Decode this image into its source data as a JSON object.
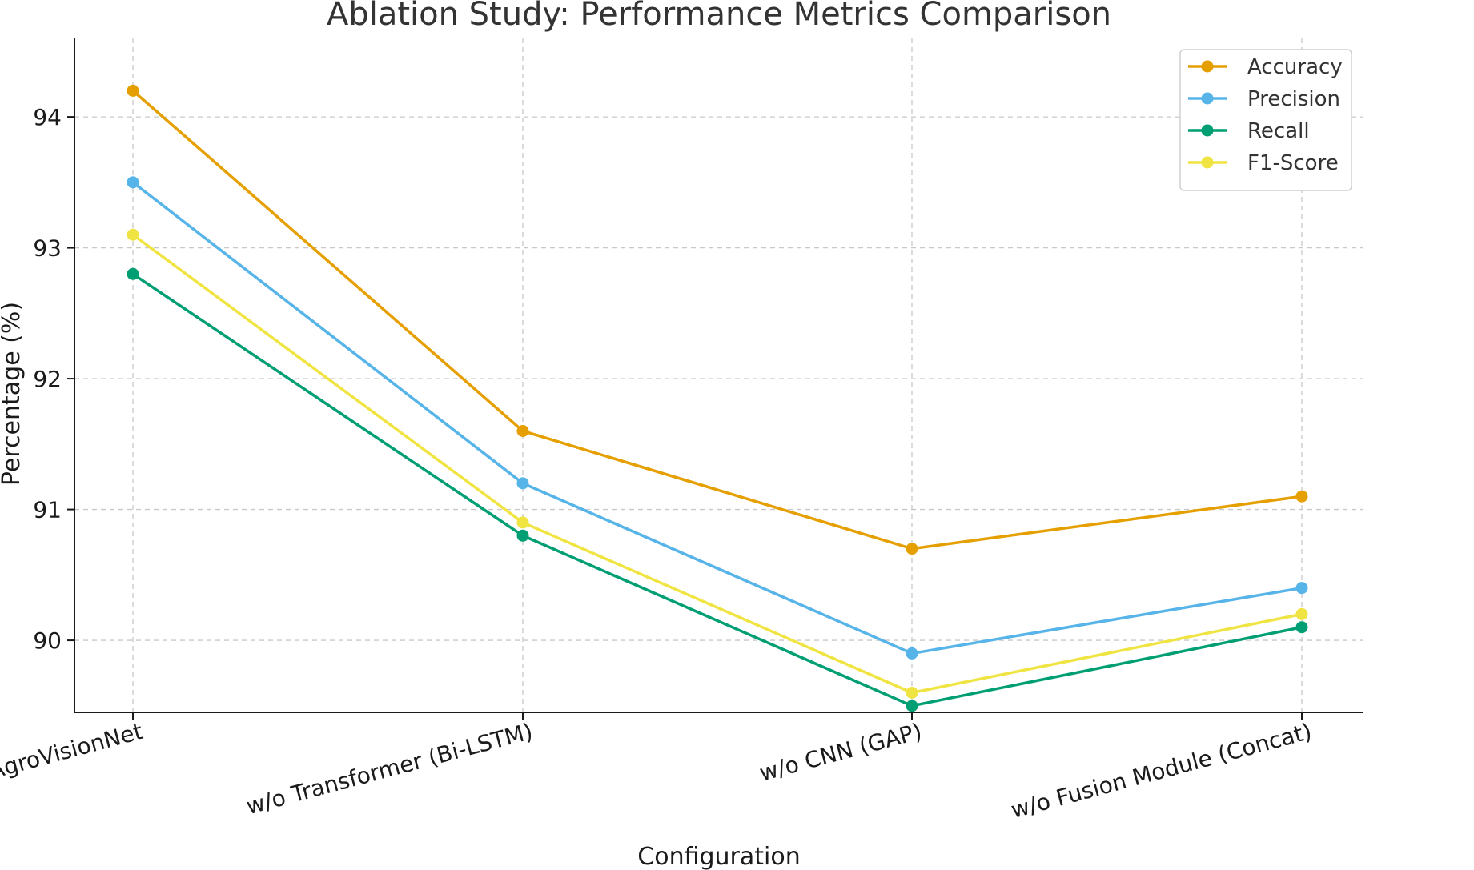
{
  "chart_data": {
    "type": "line",
    "title": "Ablation Study: Performance Metrics Comparison",
    "xlabel": "Configuration",
    "ylabel": "Percentage (%)",
    "categories": [
      "Full AgroVisionNet",
      "w/o Transformer (Bi-LSTM)",
      "w/o CNN (GAP)",
      "w/o Fusion Module (Concat)"
    ],
    "ylim": [
      89.45,
      94.6
    ],
    "yticks": [
      90,
      91,
      92,
      93,
      94
    ],
    "grid": true,
    "legend_position": "top-right",
    "series": [
      {
        "name": "Accuracy",
        "color": "#E69F00",
        "values": [
          94.2,
          91.6,
          90.7,
          91.1
        ]
      },
      {
        "name": "Precision",
        "color": "#56B4E9",
        "values": [
          93.5,
          91.2,
          89.9,
          90.4
        ]
      },
      {
        "name": "Recall",
        "color": "#009E73",
        "values": [
          92.8,
          90.8,
          89.5,
          90.1
        ]
      },
      {
        "name": "F1-Score",
        "color": "#F0E442",
        "values": [
          93.1,
          90.9,
          89.6,
          90.2
        ]
      }
    ]
  }
}
